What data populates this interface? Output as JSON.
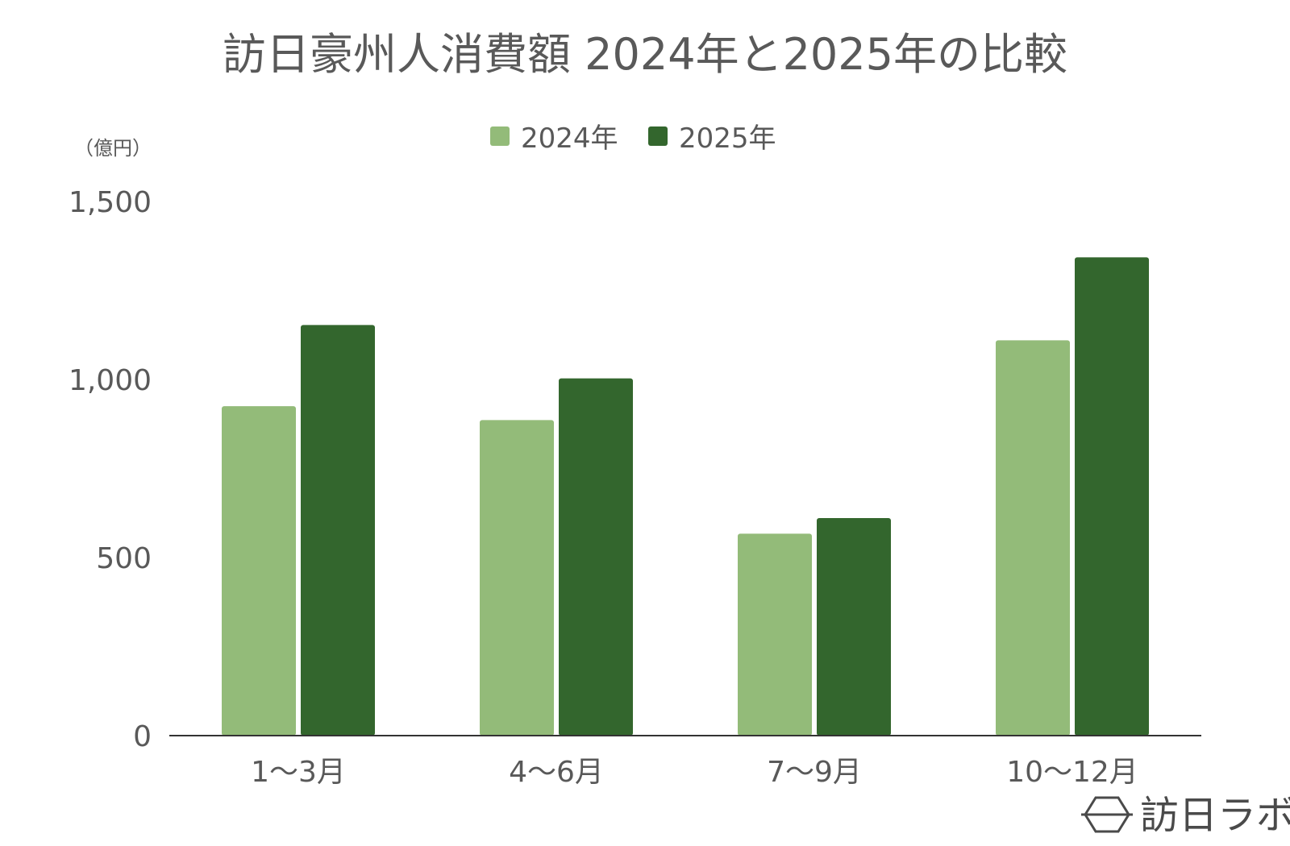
{
  "chart_data": {
    "type": "bar",
    "title": "訪日豪州人消費額 2024年と2025年の比較",
    "ylabel": "（億円）",
    "xlabel": "",
    "categories": [
      "1〜3月",
      "4〜6月",
      "7〜9月",
      "10〜12月"
    ],
    "series": [
      {
        "name": "2024年",
        "color": "#93bb79",
        "values": [
          925,
          886,
          567,
          1110
        ]
      },
      {
        "name": "2025年",
        "color": "#33662d",
        "values": [
          1153,
          1003,
          611,
          1343
        ]
      }
    ],
    "ylim": [
      0,
      1500
    ],
    "yticks": [
      0,
      500,
      1000,
      1500
    ],
    "ytick_labels": [
      "0",
      "500",
      "1,000",
      "1,500"
    ],
    "grid": false,
    "legend_position": "top-center"
  },
  "branding": {
    "logo_text": "訪日ラボ",
    "logo_icon": "hexagon-logo-icon"
  }
}
